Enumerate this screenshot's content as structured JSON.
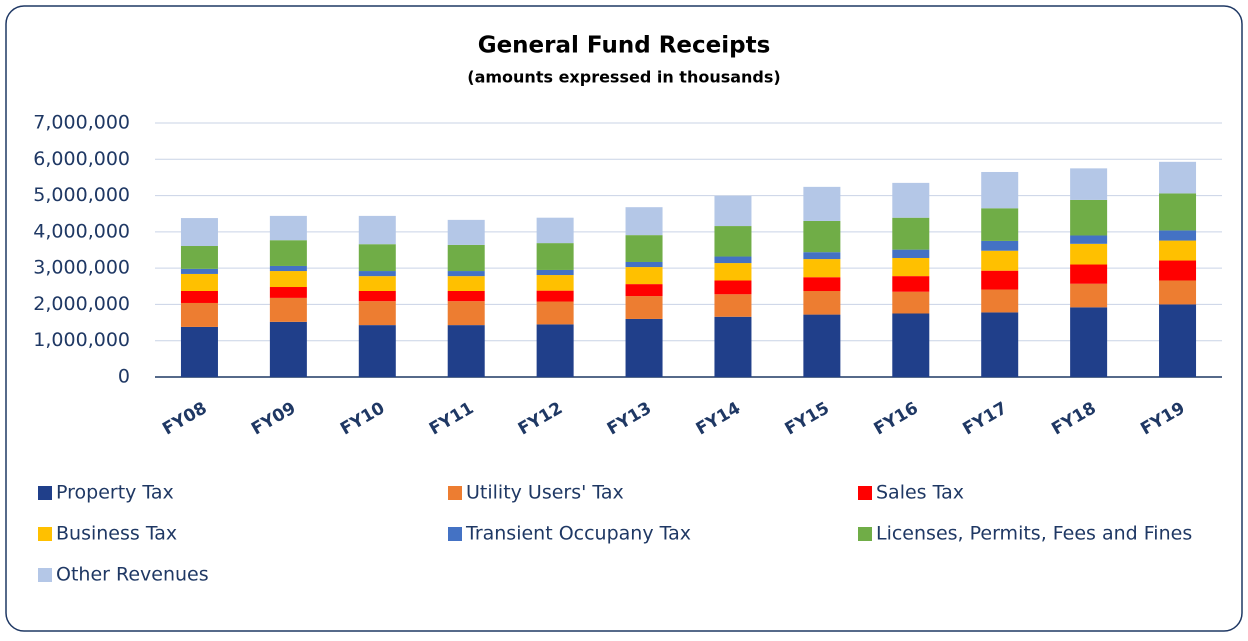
{
  "chart_data": {
    "type": "stacked-bar",
    "title": "General Fund Receipts",
    "subtitle": "(amounts expressed in thousands)",
    "categories": [
      "FY08",
      "FY09",
      "FY10",
      "FY11",
      "FY12",
      "FY13",
      "FY14",
      "FY15",
      "FY16",
      "FY17",
      "FY18",
      "FY19"
    ],
    "series": [
      {
        "name": "Property Tax",
        "color": "#203f8a",
        "values": [
          1380000,
          1520000,
          1430000,
          1430000,
          1450000,
          1600000,
          1660000,
          1720000,
          1750000,
          1780000,
          1920000,
          2000000
        ]
      },
      {
        "name": "Utility Users' Tax",
        "color": "#ed7d31",
        "values": [
          660000,
          660000,
          660000,
          660000,
          630000,
          630000,
          620000,
          650000,
          600000,
          630000,
          650000,
          660000
        ]
      },
      {
        "name": "Sales Tax",
        "color": "#ff0000",
        "values": [
          330000,
          300000,
          280000,
          280000,
          300000,
          330000,
          380000,
          380000,
          430000,
          520000,
          530000,
          550000
        ]
      },
      {
        "name": "Business Tax",
        "color": "#ffc000",
        "values": [
          470000,
          440000,
          410000,
          410000,
          430000,
          470000,
          480000,
          500000,
          500000,
          550000,
          570000,
          550000
        ]
      },
      {
        "name": "Transient Occupany Tax",
        "color": "#4472c4",
        "values": [
          140000,
          140000,
          140000,
          140000,
          140000,
          140000,
          180000,
          190000,
          230000,
          270000,
          230000,
          280000
        ]
      },
      {
        "name": "Licenses, Permits, Fees and Fines",
        "color": "#70ad47",
        "values": [
          630000,
          710000,
          740000,
          720000,
          740000,
          740000,
          840000,
          860000,
          880000,
          900000,
          980000,
          1020000
        ]
      },
      {
        "name": "Other Revenues",
        "color": "#b4c7e7",
        "values": [
          770000,
          670000,
          780000,
          690000,
          700000,
          770000,
          830000,
          940000,
          960000,
          1000000,
          870000,
          870000
        ]
      }
    ],
    "ylim": [
      0,
      7000000
    ],
    "yticks": [
      0,
      {
        "value": 1000000,
        "label": "1,000,000"
      },
      {
        "value": 2000000,
        "label": "2,000,000"
      },
      {
        "value": 3000000,
        "label": "3,000,000"
      },
      {
        "value": 4000000,
        "label": "4,000,000"
      },
      {
        "value": 5000000,
        "label": "5,000,000"
      },
      {
        "value": 6000000,
        "label": "6,000,000"
      },
      {
        "value": 7000000,
        "label": "7,000,000"
      }
    ],
    "grid": true,
    "legend": "bottom"
  }
}
